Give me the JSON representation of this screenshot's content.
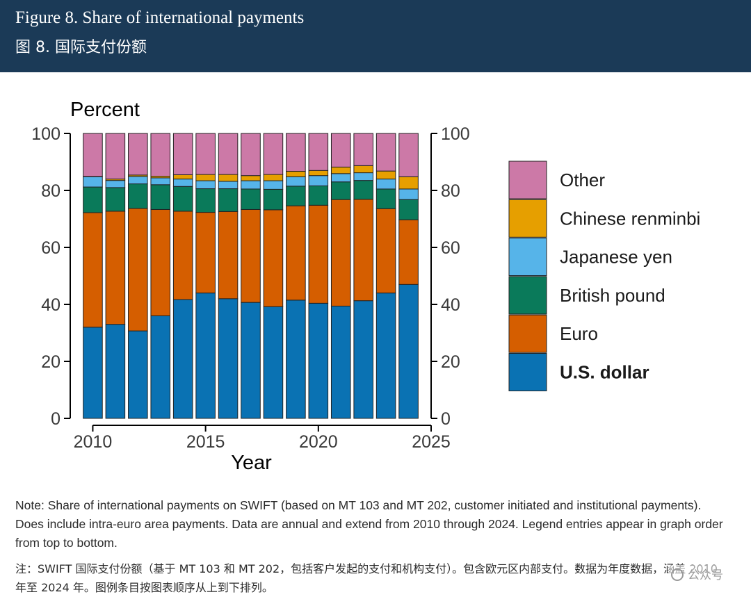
{
  "header": {
    "title_en": "Figure 8. Share of international payments",
    "title_cn": "图 8. 国际支付份额"
  },
  "chart_data": {
    "type": "bar",
    "stacked": true,
    "ylabel": "Percent",
    "xlabel": "Year",
    "ylim": [
      0,
      100
    ],
    "y_ticks": [
      0,
      20,
      40,
      60,
      80,
      100
    ],
    "x_ticks": [
      2010,
      2015,
      2020,
      2025
    ],
    "xlim": [
      2009,
      2025
    ],
    "categories": [
      2010,
      2011,
      2012,
      2013,
      2014,
      2015,
      2016,
      2017,
      2018,
      2019,
      2020,
      2021,
      2022,
      2023,
      2024
    ],
    "series": [
      {
        "name": "U.S. dollar",
        "color": "#0a72b3",
        "values": [
          32,
          33,
          30.7,
          36,
          41.7,
          44,
          42,
          40.7,
          39.2,
          41.5,
          40.4,
          39.4,
          41.3,
          44,
          47
        ]
      },
      {
        "name": "Euro",
        "color": "#d55e00",
        "values": [
          40.2,
          39.7,
          43,
          37.3,
          31,
          28.3,
          30.6,
          32.6,
          34,
          33.1,
          34.4,
          37.4,
          35.6,
          29.6,
          22.7
        ]
      },
      {
        "name": "British pound",
        "color": "#0a7a5a",
        "values": [
          9,
          8.3,
          8.6,
          8.7,
          8.7,
          8.3,
          8,
          7.2,
          7.2,
          6.9,
          6.8,
          6.2,
          6.6,
          6.9,
          7.1
        ]
      },
      {
        "name": "Japanese yen",
        "color": "#56b4e9",
        "values": [
          3.6,
          2.5,
          2.6,
          2.4,
          2.6,
          2.8,
          2.6,
          2.9,
          3,
          3.3,
          3.6,
          2.9,
          2.7,
          3.5,
          3.7
        ]
      },
      {
        "name": "Chinese renminbi",
        "color": "#e69f00",
        "values": [
          0.1,
          0.5,
          0.5,
          0.6,
          1.5,
          2.2,
          2.4,
          1.8,
          2.2,
          1.9,
          1.8,
          2.3,
          2.5,
          2.8,
          4.3
        ]
      },
      {
        "name": "Other",
        "color": "#cc79a7",
        "values": [
          15.1,
          16,
          14.6,
          15,
          14.5,
          14.4,
          14.4,
          14.8,
          14.4,
          13.3,
          13,
          11.8,
          11.3,
          13.2,
          15.2
        ]
      }
    ],
    "legend": {
      "placement": "right",
      "order": [
        "Other",
        "Chinese renminbi",
        "Japanese yen",
        "British pound",
        "Euro",
        "U.S. dollar"
      ],
      "bold": [
        "U.S. dollar"
      ]
    }
  },
  "notes": {
    "en": "Note: Share of international payments on SWIFT (based on MT 103 and MT 202, customer initiated and institutional payments). Does include intra-euro area payments. Data are annual and extend from 2010 through 2024. Legend entries appear in graph order from top to bottom.",
    "cn": "注：SWIFT 国际支付份额（基于 MT 103 和 MT 202，包括客户发起的支付和机构支付）。包含欧元区内部支付。数据为年度数据，涵盖 2010 年至 2024 年。图例条目按图表顺序从上到下排列。"
  },
  "watermark": "公众号"
}
